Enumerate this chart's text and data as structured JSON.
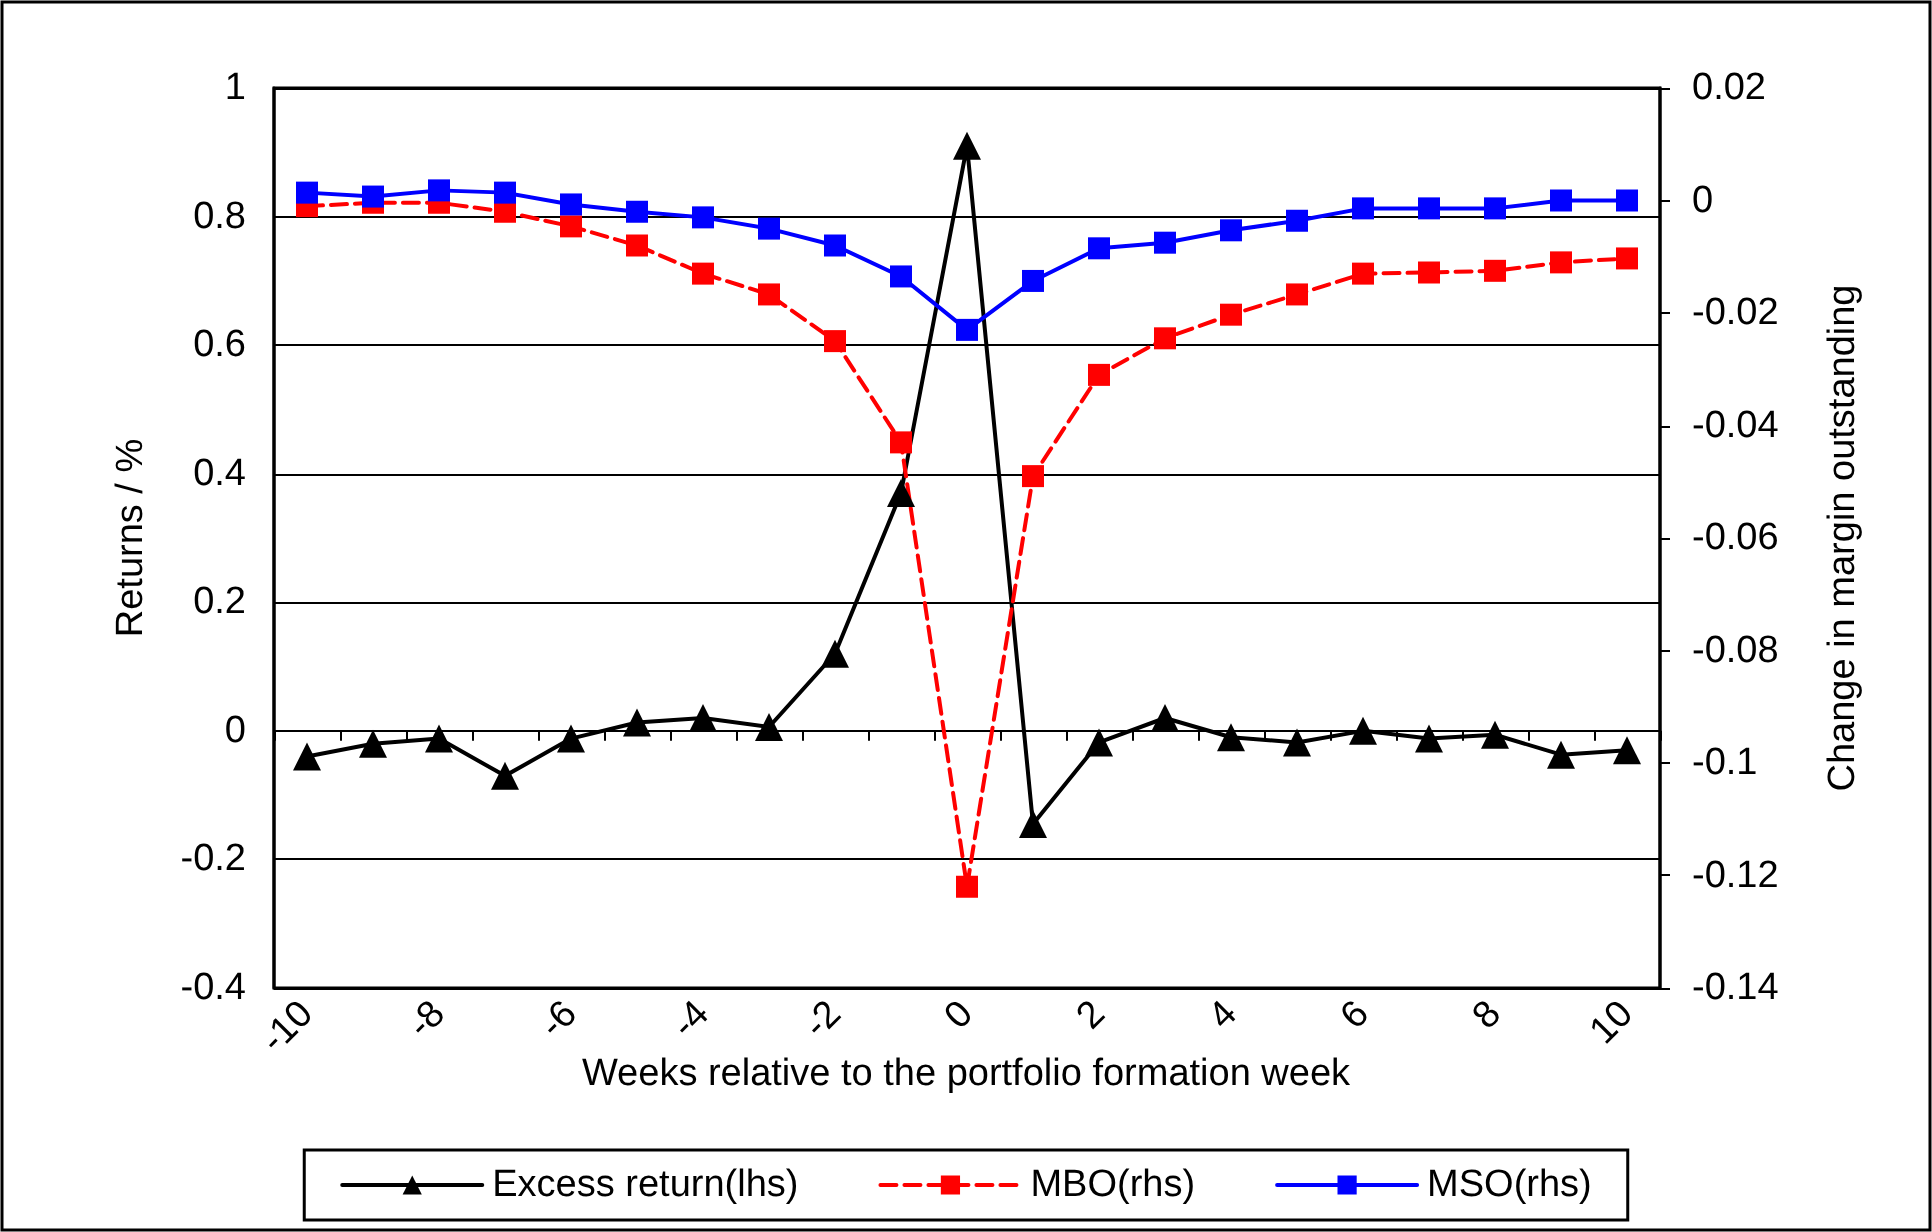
{
  "chart_data": {
    "type": "line",
    "xlabel": "Weeks relative to the portfolio formation week",
    "ylabel": "Returns / %",
    "y2label": "Change in margin outstanding",
    "categories": [
      "-10",
      null,
      "-8",
      null,
      "-6",
      null,
      "-4",
      null,
      "-2",
      null,
      "0",
      null,
      "2",
      null,
      "4",
      null,
      "6",
      null,
      "8",
      null,
      "10"
    ],
    "series": [
      {
        "name": "Excess return(lhs)",
        "color": "#000000",
        "marker": "triangle",
        "line_style": "solid",
        "values": [
          -0.04,
          -0.02,
          -0.012,
          -0.07,
          -0.012,
          0.013,
          0.02,
          0.006,
          0.12,
          0.37,
          0.91,
          -0.145,
          -0.018,
          0.02,
          -0.01,
          -0.018,
          0,
          -0.012,
          -0.006,
          -0.037,
          -0.03
        ]
      },
      {
        "name": "MBO(rhs)",
        "color": "#ff0000",
        "marker": "square",
        "line_style": "dashed",
        "axis": "y2",
        "values": [
          -0.001,
          -0.0004,
          -0.0004,
          -0.002,
          -0.0046,
          -0.008,
          -0.013,
          -0.0167,
          -0.025,
          -0.043,
          -0.122,
          -0.049,
          -0.031,
          -0.0245,
          -0.0203,
          -0.0167,
          -0.013,
          -0.0128,
          -0.0125,
          -0.011,
          -0.0103
        ]
      },
      {
        "name": "MSO(rhs)",
        "color": "#0000ff",
        "marker": "square",
        "line_style": "solid",
        "axis": "y2",
        "values": [
          0.0014,
          0.0007,
          0.0018,
          0.0014,
          -0.0007,
          -0.002,
          -0.003,
          -0.005,
          -0.008,
          -0.0135,
          -0.023,
          -0.0143,
          -0.0085,
          -0.0075,
          -0.0053,
          -0.0036,
          -0.0014,
          -0.0014,
          -0.0014,
          0,
          0
        ]
      }
    ],
    "ylim": [
      -0.4,
      1
    ],
    "yticks": [
      -0.4,
      -0.2,
      0,
      0.2,
      0.4,
      0.6,
      0.8,
      1
    ],
    "y2lim": [
      -0.14,
      0.02
    ],
    "y2ticks": [
      -0.14,
      -0.12,
      -0.1,
      -0.08,
      -0.06,
      -0.04,
      -0.02,
      0,
      0.02
    ],
    "grid": "y",
    "legend": "bottom"
  }
}
